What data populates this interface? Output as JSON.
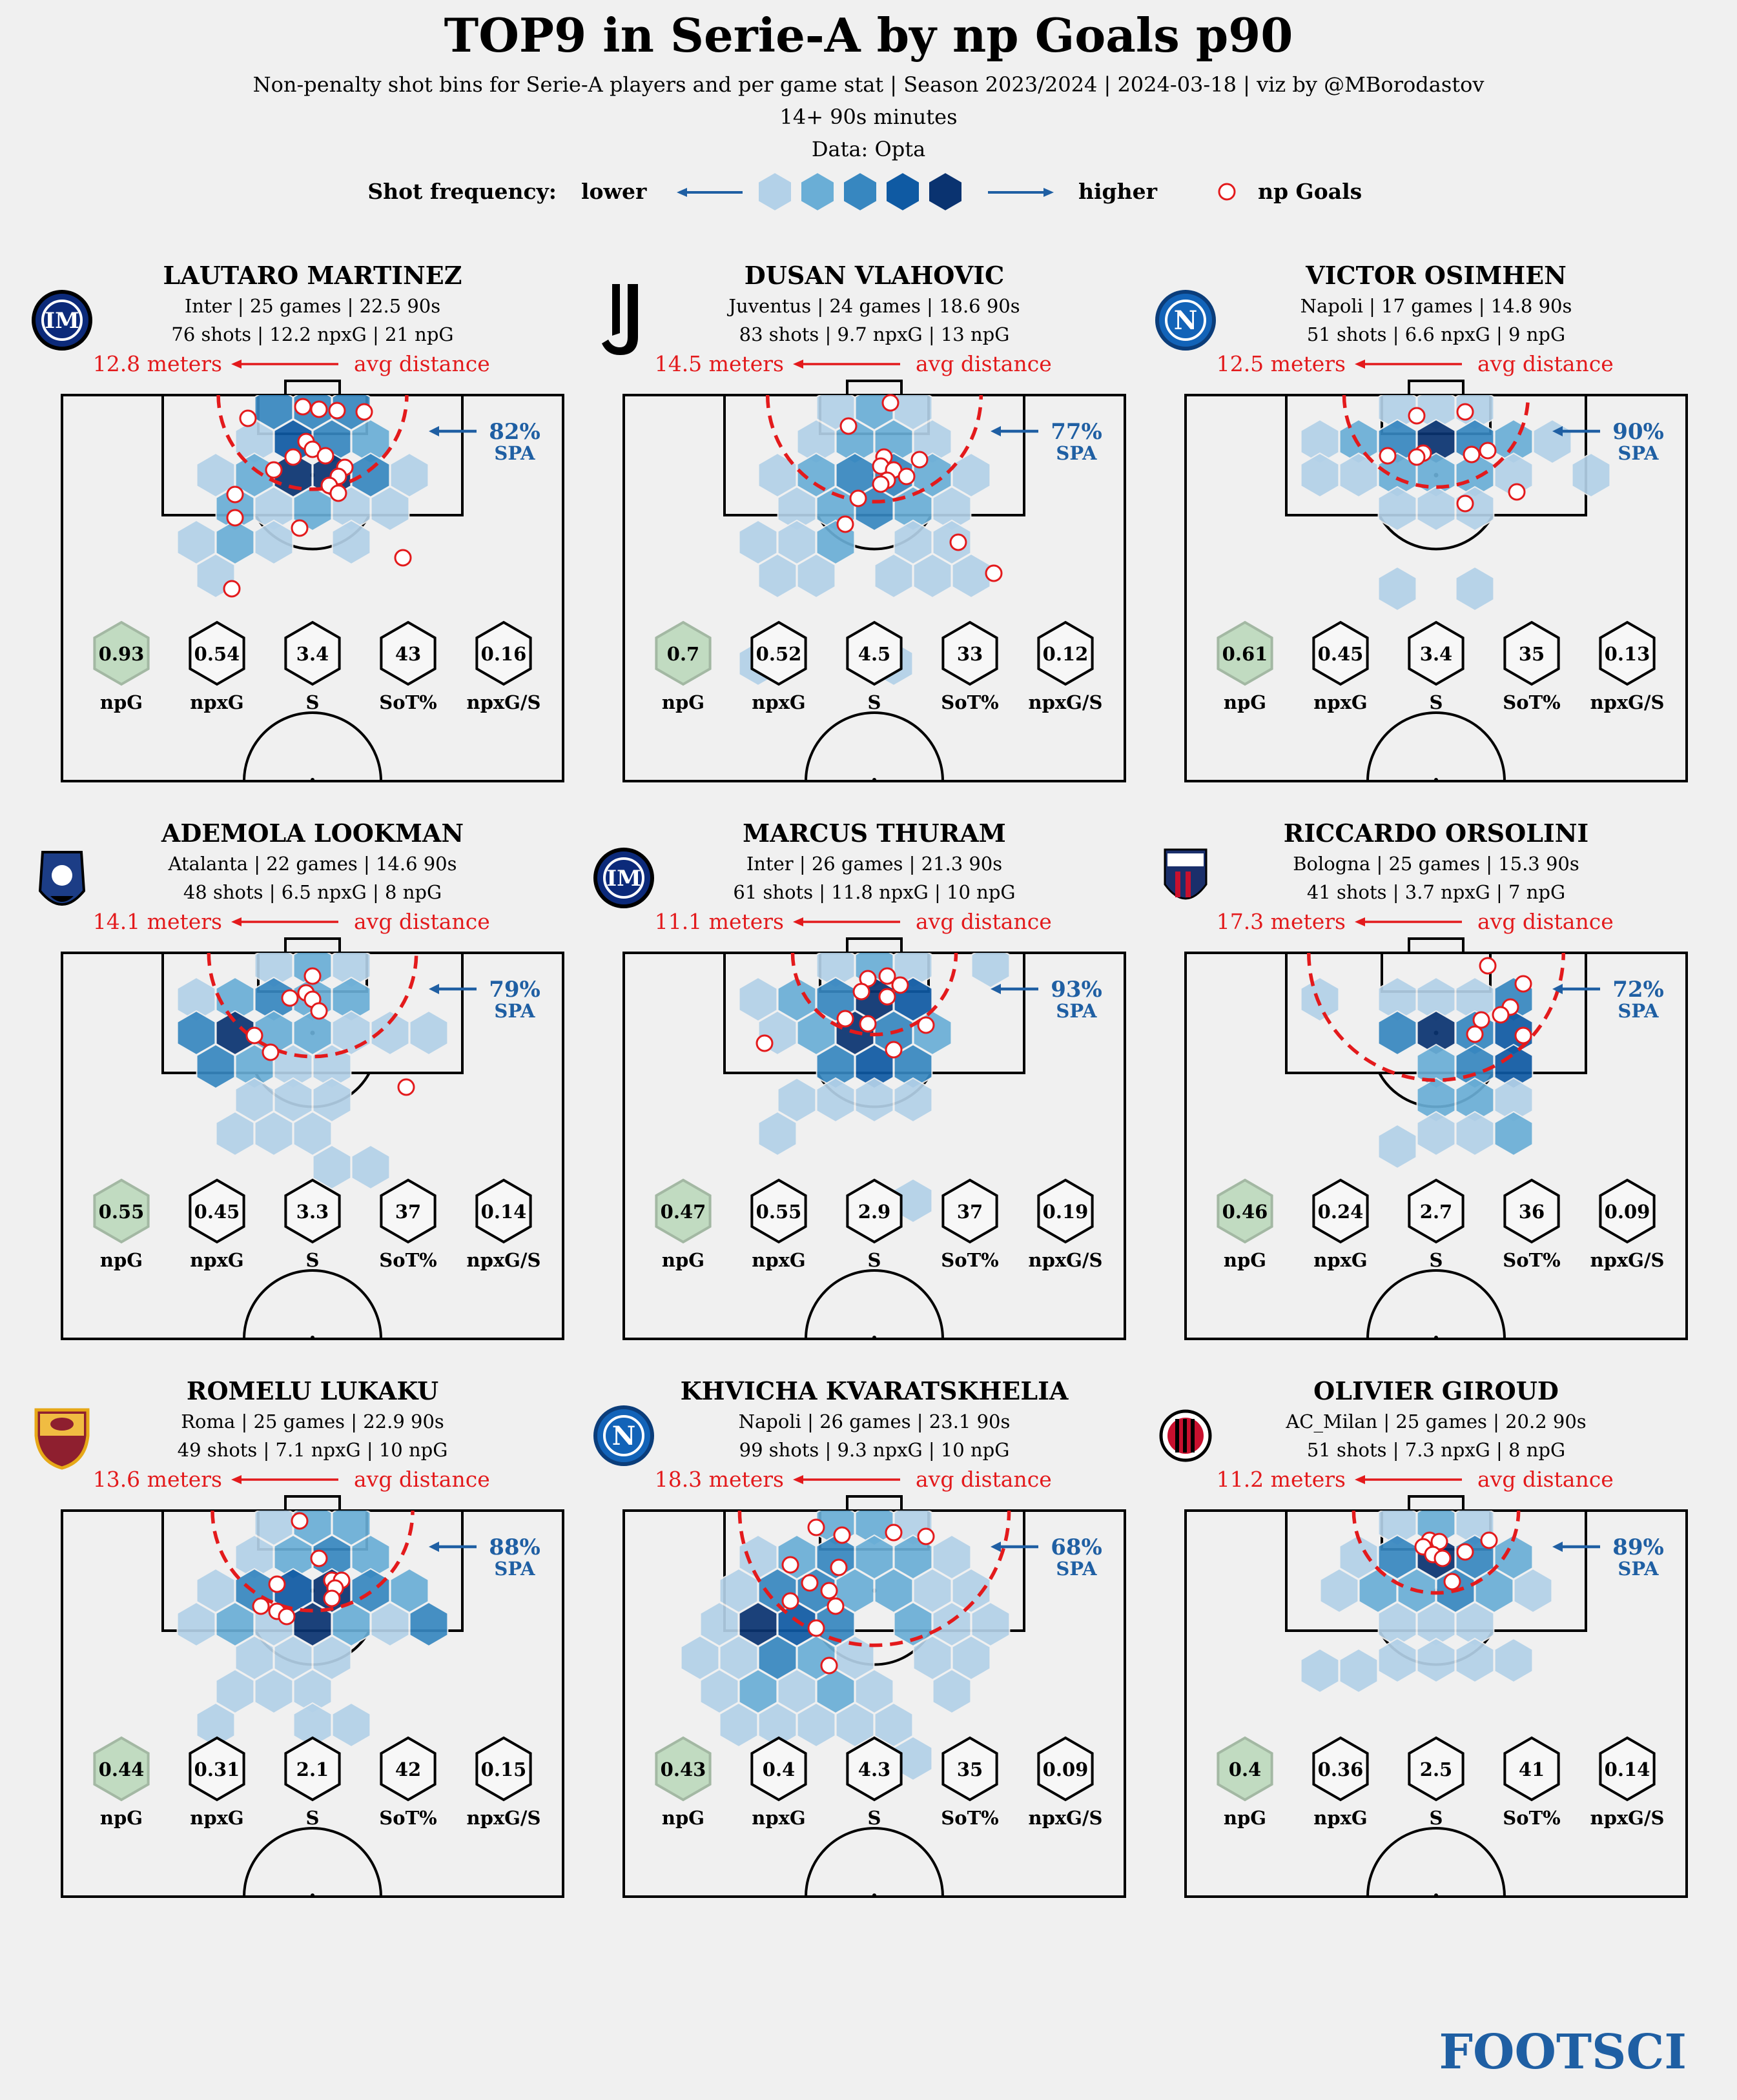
{
  "header": {
    "title": "TOP9 in Serie-A by np Goals p90",
    "subtitle": "Non-penalty shot bins for Serie-A players and per game stat | Season 2023/2024 | 2024-03-18 | viz by @MBorodastov",
    "minutes_note": "14+ 90s minutes",
    "data_source": "Data: Opta"
  },
  "legend": {
    "shot_frequency_label": "Shot frequency:",
    "lower": "lower",
    "higher": "higher",
    "goals_label": "np Goals",
    "hex_colors": [
      "#b3d1e8",
      "#6aaed6",
      "#3787c0",
      "#0f5aa3",
      "#0a3370"
    ]
  },
  "labels": {
    "avg_distance": "avg distance",
    "spa": "SPA",
    "stats": [
      "npG",
      "npxG",
      "S",
      "SoT%",
      "npxG/S"
    ]
  },
  "footer": {
    "brand": "FOOTSCI"
  },
  "colors": {
    "red": "#e31a1c",
    "blue": "#1f5fa3",
    "green_hex": "#c1dbc1",
    "background": "#f0f0f0"
  },
  "chart_data": {
    "type": "hexbin",
    "players": [
      {
        "name": "LAUTARO MARTINEZ",
        "club": "Inter",
        "line1": "Inter | 25 games | 22.5 90s",
        "line2": "76 shots | 12.2 npxG | 21 npG",
        "avg_distance": "12.8 meters",
        "spa": "82%",
        "stats": [
          "0.93",
          "0.54",
          "3.4",
          "43",
          "0.16"
        ],
        "logo": "inter-logo"
      },
      {
        "name": "DUSAN VLAHOVIC",
        "club": "Juventus",
        "line1": "Juventus | 24 games | 18.6 90s",
        "line2": "83 shots | 9.7 npxG | 13 npG",
        "avg_distance": "14.5 meters",
        "spa": "77%",
        "stats": [
          "0.7",
          "0.52",
          "4.5",
          "33",
          "0.12"
        ],
        "logo": "juventus-logo"
      },
      {
        "name": "VICTOR OSIMHEN",
        "club": "Napoli",
        "line1": "Napoli | 17 games | 14.8 90s",
        "line2": "51 shots | 6.6 npxG | 9 npG",
        "avg_distance": "12.5 meters",
        "spa": "90%",
        "stats": [
          "0.61",
          "0.45",
          "3.4",
          "35",
          "0.13"
        ],
        "logo": "napoli-logo"
      },
      {
        "name": "ADEMOLA LOOKMAN",
        "club": "Atalanta",
        "line1": "Atalanta | 22 games | 14.6 90s",
        "line2": "48 shots | 6.5 npxG | 8 npG",
        "avg_distance": "14.1 meters",
        "spa": "79%",
        "stats": [
          "0.55",
          "0.45",
          "3.3",
          "37",
          "0.14"
        ],
        "logo": "atalanta-logo"
      },
      {
        "name": "MARCUS THURAM",
        "club": "Inter",
        "line1": "Inter | 26 games | 21.3 90s",
        "line2": "61 shots | 11.8 npxG | 10 npG",
        "avg_distance": "11.1 meters",
        "spa": "93%",
        "stats": [
          "0.47",
          "0.55",
          "2.9",
          "37",
          "0.19"
        ],
        "logo": "inter-logo"
      },
      {
        "name": "RICCARDO ORSOLINI",
        "club": "Bologna",
        "line1": "Bologna | 25 games | 15.3 90s",
        "line2": "41 shots | 3.7 npxG | 7 npG",
        "avg_distance": "17.3 meters",
        "spa": "72%",
        "stats": [
          "0.46",
          "0.24",
          "2.7",
          "36",
          "0.09"
        ],
        "logo": "bologna-logo"
      },
      {
        "name": "ROMELU LUKAKU",
        "club": "Roma",
        "line1": "Roma | 25 games | 22.9 90s",
        "line2": "49 shots | 7.1 npxG | 10 npG",
        "avg_distance": "13.6 meters",
        "spa": "88%",
        "stats": [
          "0.44",
          "0.31",
          "2.1",
          "42",
          "0.15"
        ],
        "logo": "roma-logo"
      },
      {
        "name": "KHVICHA KVARATSKHELIA",
        "club": "Napoli",
        "line1": "Napoli | 26 games | 23.1 90s",
        "line2": "99 shots | 9.3 npxG | 10 npG",
        "avg_distance": "18.3 meters",
        "spa": "68%",
        "stats": [
          "0.43",
          "0.4",
          "4.3",
          "35",
          "0.09"
        ],
        "logo": "napoli-logo"
      },
      {
        "name": "OLIVIER GIROUD",
        "club": "AC_Milan",
        "line1": "AC_Milan | 25 games | 20.2 90s",
        "line2": "51 shots | 7.3 npxG | 8 npG",
        "avg_distance": "11.2 meters",
        "spa": "89%",
        "stats": [
          "0.4",
          "0.36",
          "2.5",
          "41",
          "0.14"
        ],
        "logo": "milan-logo"
      }
    ]
  }
}
